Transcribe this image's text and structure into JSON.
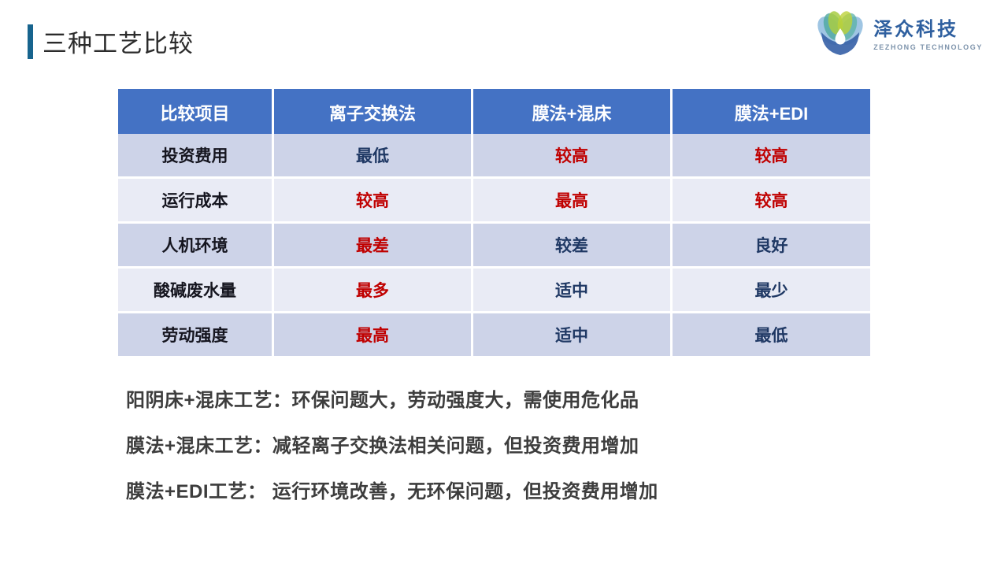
{
  "title": "三种工艺比较",
  "logo": {
    "name": "泽众科技",
    "subtitle": "ZEZHONG TECHNOLOGY"
  },
  "colors": {
    "accent": "#17648E",
    "header_bg": "#4472C4",
    "band_dark": "#CDD3E8",
    "band_light": "#E9EBF5",
    "red": "#C00000",
    "navy": "#1F3864",
    "label": "#15151F"
  },
  "table": {
    "headers": [
      "比较项目",
      "离子交换法",
      "膜法+混床",
      "膜法+EDI"
    ],
    "rows": [
      {
        "label": "投资费用",
        "cells": [
          {
            "text": "最低",
            "tone": "navy"
          },
          {
            "text": "较高",
            "tone": "red"
          },
          {
            "text": "较高",
            "tone": "red"
          }
        ]
      },
      {
        "label": "运行成本",
        "cells": [
          {
            "text": "较高",
            "tone": "red"
          },
          {
            "text": "最高",
            "tone": "red"
          },
          {
            "text": "较高",
            "tone": "red"
          }
        ]
      },
      {
        "label": "人机环境",
        "cells": [
          {
            "text": "最差",
            "tone": "red"
          },
          {
            "text": "较差",
            "tone": "navy"
          },
          {
            "text": "良好",
            "tone": "navy"
          }
        ]
      },
      {
        "label": "酸碱废水量",
        "cells": [
          {
            "text": "最多",
            "tone": "red"
          },
          {
            "text": "适中",
            "tone": "navy"
          },
          {
            "text": "最少",
            "tone": "navy"
          }
        ]
      },
      {
        "label": "劳动强度",
        "cells": [
          {
            "text": "最高",
            "tone": "red"
          },
          {
            "text": "适中",
            "tone": "navy"
          },
          {
            "text": "最低",
            "tone": "navy"
          }
        ]
      }
    ]
  },
  "notes": [
    "阳阴床+混床工艺：环保问题大，劳动强度大，需使用危化品",
    "膜法+混床工艺：减轻离子交换法相关问题，但投资费用增加",
    "膜法+EDI工艺： 运行环境改善，无环保问题，但投资费用增加"
  ]
}
